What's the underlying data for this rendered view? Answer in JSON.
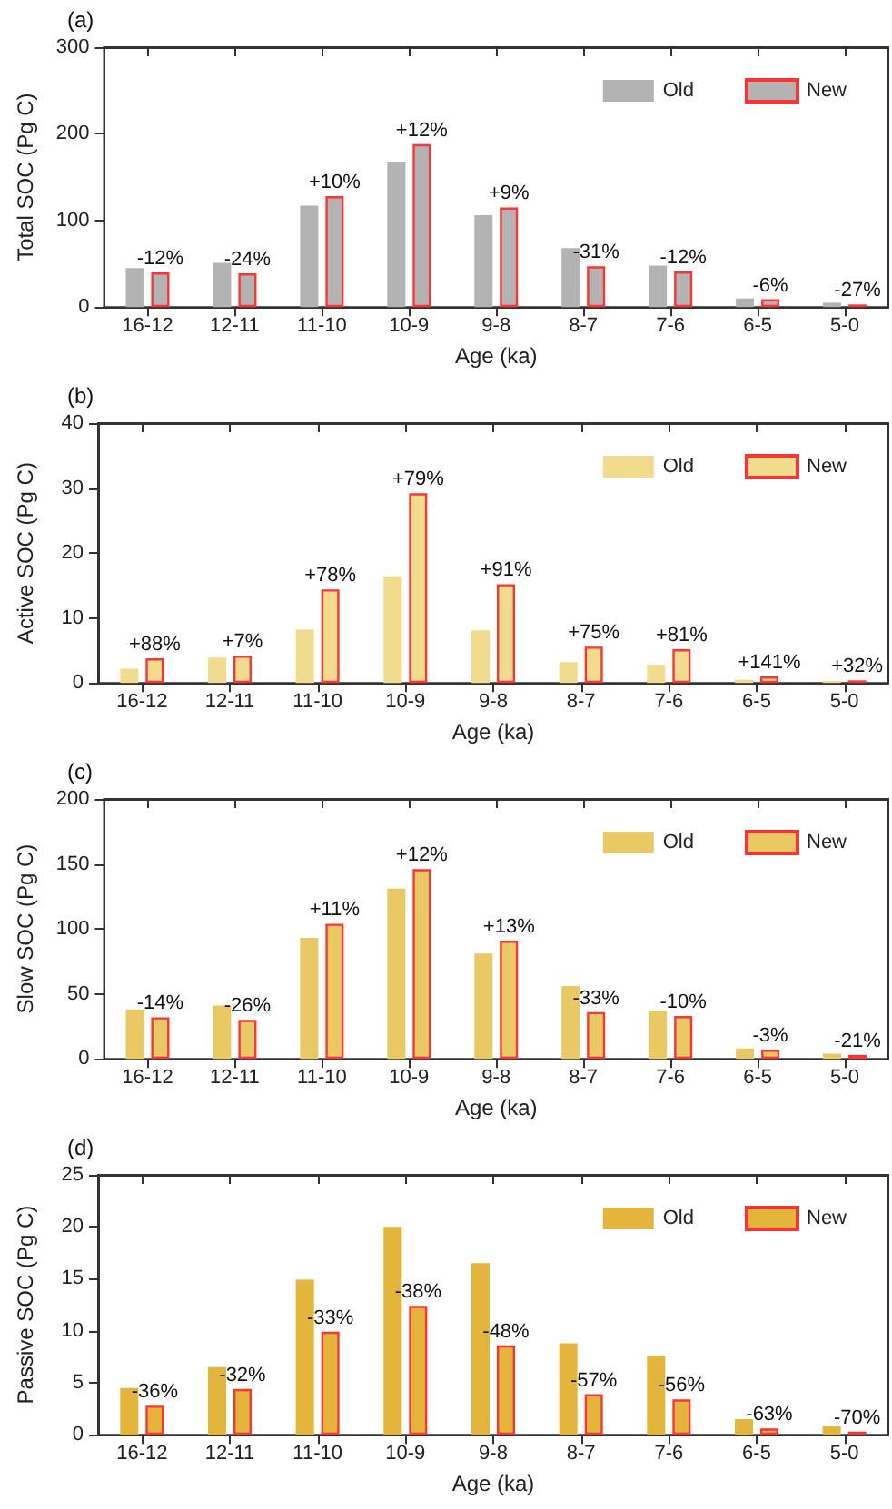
{
  "chart_data": [
    {
      "type": "bar",
      "title": "(a)",
      "xlabel": "Age (ka)",
      "ylabel": "Total SOC (Pg C)",
      "categories": [
        "16-12",
        "12-11",
        "11-10",
        "10-9",
        "9-8",
        "8-7",
        "7-6",
        "6-5",
        "5-0"
      ],
      "ylim": [
        0,
        300
      ],
      "yticks": [
        0,
        100,
        200,
        300
      ],
      "legend": "top right",
      "grid": false,
      "series": [
        {
          "name": "Old",
          "color": "#b3b3b3",
          "values": [
            45,
            51,
            117,
            168,
            106,
            68,
            48,
            10,
            5
          ]
        },
        {
          "name": "New",
          "color": "#b3b3b3",
          "values": [
            40,
            39,
            128,
            188,
            115,
            47,
            41,
            9,
            3
          ]
        }
      ],
      "annotations": [
        {
          "text": "-12%",
          "x": "16-12",
          "y": 40
        },
        {
          "text": "-24%",
          "x": "12-11",
          "y": 39
        },
        {
          "text": "+10%",
          "x": "11-10",
          "y": 128
        },
        {
          "text": "+12%",
          "x": "10-9",
          "y": 188
        },
        {
          "text": "+9%",
          "x": "9-8",
          "y": 115
        },
        {
          "text": "-31%",
          "x": "8-7",
          "y": 47
        },
        {
          "text": "-12%",
          "x": "7-6",
          "y": 41
        },
        {
          "text": "-6%",
          "x": "6-5",
          "y": 9
        },
        {
          "text": "-27%",
          "x": "5-0",
          "y": 3
        }
      ]
    },
    {
      "type": "bar",
      "title": "(b)",
      "xlabel": "Age (ka)",
      "ylabel": "Active SOC (Pg C)",
      "categories": [
        "16-12",
        "12-11",
        "11-10",
        "10-9",
        "9-8",
        "8-7",
        "7-6",
        "6-5",
        "5-0"
      ],
      "ylim": [
        0,
        40
      ],
      "yticks": [
        0,
        10,
        20,
        30,
        40
      ],
      "legend": "top right",
      "grid": false,
      "series": [
        {
          "name": "Old",
          "color": "#f0dc8c",
          "values": [
            2.2,
            3.9,
            8.2,
            16.4,
            8.1,
            3.2,
            2.8,
            0.5,
            0.3
          ]
        },
        {
          "name": "New",
          "color": "#f0dc8c",
          "values": [
            3.8,
            4.2,
            14.4,
            29.2,
            15.2,
            5.6,
            5.2,
            1.0,
            0.4
          ]
        }
      ],
      "annotations": [
        {
          "text": "+88%",
          "x": "16-12",
          "y": 3.8
        },
        {
          "text": "+7%",
          "x": "12-11",
          "y": 4.2
        },
        {
          "text": "+78%",
          "x": "11-10",
          "y": 14.4
        },
        {
          "text": "+79%",
          "x": "10-9",
          "y": 29.2
        },
        {
          "text": "+91%",
          "x": "9-8",
          "y": 15.2
        },
        {
          "text": "+75%",
          "x": "8-7",
          "y": 5.6
        },
        {
          "text": "+81%",
          "x": "7-6",
          "y": 5.2
        },
        {
          "text": "+141%",
          "x": "6-5",
          "y": 1.0
        },
        {
          "text": "+32%",
          "x": "5-0",
          "y": 0.4
        }
      ]
    },
    {
      "type": "bar",
      "title": "(c)",
      "xlabel": "Age (ka)",
      "ylabel": "Slow SOC (Pg C)",
      "categories": [
        "16-12",
        "12-11",
        "11-10",
        "10-9",
        "9-8",
        "8-7",
        "7-6",
        "6-5",
        "5-0"
      ],
      "ylim": [
        0,
        200
      ],
      "yticks": [
        0,
        50,
        100,
        150,
        200
      ],
      "legend": "top right",
      "grid": false,
      "series": [
        {
          "name": "Old",
          "color": "#e8c964",
          "values": [
            38,
            41,
            93,
            131,
            81,
            56,
            37,
            8,
            4
          ]
        },
        {
          "name": "New",
          "color": "#e8c964",
          "values": [
            32,
            30,
            104,
            146,
            91,
            36,
            33,
            7,
            3
          ]
        }
      ],
      "annotations": [
        {
          "text": "-14%",
          "x": "16-12",
          "y": 32
        },
        {
          "text": "-26%",
          "x": "12-11",
          "y": 30
        },
        {
          "text": "+11%",
          "x": "11-10",
          "y": 104
        },
        {
          "text": "+12%",
          "x": "10-9",
          "y": 146
        },
        {
          "text": "+13%",
          "x": "9-8",
          "y": 91
        },
        {
          "text": "-33%",
          "x": "8-7",
          "y": 36
        },
        {
          "text": "-10%",
          "x": "7-6",
          "y": 33
        },
        {
          "text": "-3%",
          "x": "6-5",
          "y": 7
        },
        {
          "text": "-21%",
          "x": "5-0",
          "y": 3
        }
      ]
    },
    {
      "type": "bar",
      "title": "(d)",
      "xlabel": "Age (ka)",
      "ylabel": "Passive SOC (Pg C)",
      "categories": [
        "16-12",
        "12-11",
        "11-10",
        "10-9",
        "9-8",
        "8-7",
        "7-6",
        "6-5",
        "5-0"
      ],
      "ylim": [
        0,
        25
      ],
      "yticks": [
        0,
        5,
        10,
        15,
        20,
        25
      ],
      "legend": "top right",
      "grid": false,
      "series": [
        {
          "name": "Old",
          "color": "#e3b53a",
          "values": [
            4.5,
            6.5,
            14.9,
            20.0,
            16.5,
            8.8,
            7.6,
            1.5,
            0.8
          ]
        },
        {
          "name": "New",
          "color": "#e3b53a",
          "values": [
            2.8,
            4.4,
            9.9,
            12.4,
            8.6,
            3.9,
            3.4,
            0.6,
            0.3
          ]
        }
      ],
      "annotations": [
        {
          "text": "-36%",
          "x": "16-12",
          "y": 2.8
        },
        {
          "text": "-32%",
          "x": "12-11",
          "y": 4.4
        },
        {
          "text": "-33%",
          "x": "11-10",
          "y": 9.9
        },
        {
          "text": "-38%",
          "x": "10-9",
          "y": 12.4
        },
        {
          "text": "-48%",
          "x": "9-8",
          "y": 8.6
        },
        {
          "text": "-57%",
          "x": "8-7",
          "y": 3.9
        },
        {
          "text": "-56%",
          "x": "7-6",
          "y": 3.4
        },
        {
          "text": "-63%",
          "x": "6-5",
          "y": 0.6
        },
        {
          "text": "-70%",
          "x": "5-0",
          "y": 0.3
        }
      ]
    }
  ]
}
